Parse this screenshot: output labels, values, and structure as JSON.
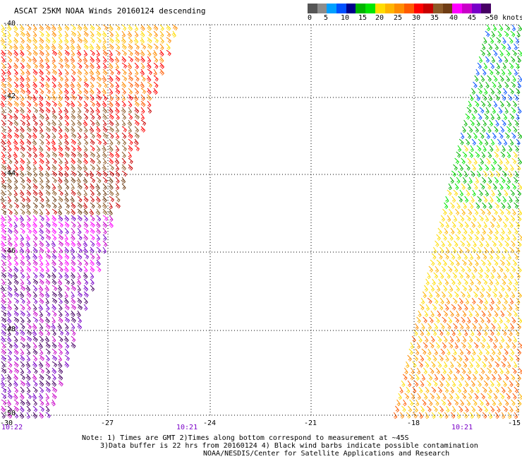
{
  "title": "ASCAT 25KM NOAA Winds 20160124 descending",
  "colorbar": {
    "colors": [
      "#555555",
      "#8c8c8c",
      "#00a0ff",
      "#0050ff",
      "#00008c",
      "#00b400",
      "#00e600",
      "#ffdc00",
      "#ffb400",
      "#ff8c00",
      "#ff5a00",
      "#ff0000",
      "#c80000",
      "#8c5a28",
      "#6e3c14",
      "#ff00ff",
      "#c800c8",
      "#7800c8",
      "#460064"
    ],
    "labels": [
      "0",
      "5",
      "10",
      "15",
      "20",
      "25",
      "30",
      "35",
      "40",
      "45",
      ">50 knots"
    ]
  },
  "axes": {
    "lon_labels": [
      "-30",
      "-27",
      "-24",
      "-21",
      "-18",
      "-15"
    ],
    "lat_labels": [
      "-40",
      "-42",
      "-44",
      "-46",
      "-48",
      "-50"
    ]
  },
  "times": [
    "10:22",
    "10:21",
    "10:21"
  ],
  "notes": {
    "line1": "Note: 1) Times are GMT 2)Times along bottom correspond to measurement at ~45S",
    "line2": "3)Data buffer is 22 hrs from 20160124 4) Black wind barbs indicate possible contamination",
    "line3": "NOAA/NESDIS/Center for Satellite Applications and Research"
  }
}
